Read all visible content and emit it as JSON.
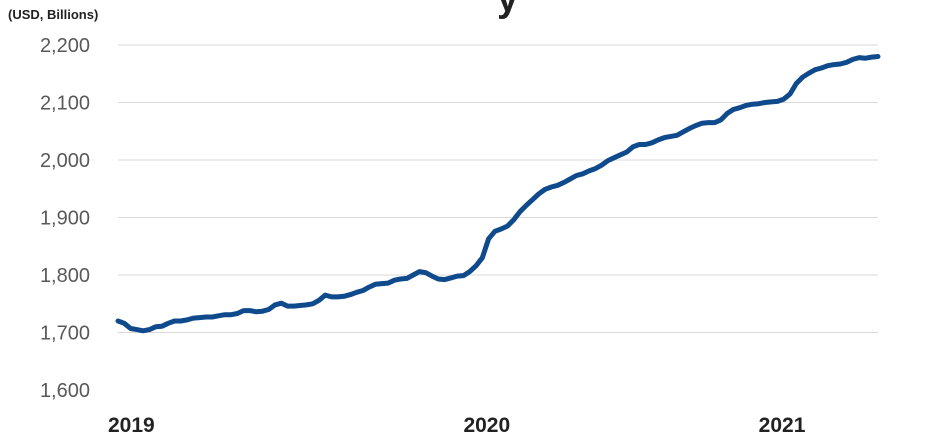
{
  "chart_data": {
    "type": "line",
    "title_fragment": "y",
    "units_label": "(USD, Billions)",
    "xlabel": "",
    "ylabel": "",
    "x_tick_labels": [
      "2019",
      "2020",
      "2021"
    ],
    "y_tick_labels": [
      "1,600",
      "1,700",
      "1,800",
      "1,900",
      "2,000",
      "2,100",
      "2,200"
    ],
    "ylim": [
      1600,
      2200
    ],
    "grid": true,
    "legend": "none",
    "colors": {
      "line": "#0e4a8c",
      "grid": "#d9d9d9",
      "tick_text": "#595959"
    },
    "series": [
      {
        "values": [
          1720,
          1716,
          1707,
          1705,
          1703,
          1705,
          1710,
          1711,
          1716,
          1720,
          1720,
          1722,
          1725,
          1726,
          1727,
          1727,
          1729,
          1731,
          1731,
          1733,
          1738,
          1738,
          1736,
          1737,
          1740,
          1748,
          1751,
          1746,
          1746,
          1747,
          1748,
          1750,
          1756,
          1765,
          1762,
          1762,
          1763,
          1766,
          1770,
          1773,
          1779,
          1784,
          1785,
          1786,
          1791,
          1793,
          1794,
          1800,
          1806,
          1804,
          1798,
          1793,
          1792,
          1795,
          1798,
          1799,
          1806,
          1816,
          1830,
          1863,
          1876,
          1880,
          1885,
          1896,
          1910,
          1921,
          1931,
          1941,
          1949,
          1953,
          1956,
          1961,
          1967,
          1973,
          1976,
          1981,
          1985,
          1991,
          1999,
          2004,
          2009,
          2014,
          2023,
          2027,
          2027,
          2030,
          2035,
          2039,
          2041,
          2043,
          2049,
          2055,
          2060,
          2064,
          2065,
          2065,
          2070,
          2081,
          2088,
          2091,
          2095,
          2097,
          2098,
          2100,
          2101,
          2102,
          2106,
          2115,
          2133,
          2144,
          2151,
          2157,
          2160,
          2164,
          2166,
          2167,
          2170,
          2175,
          2178,
          2177,
          2179,
          2180
        ]
      }
    ]
  }
}
